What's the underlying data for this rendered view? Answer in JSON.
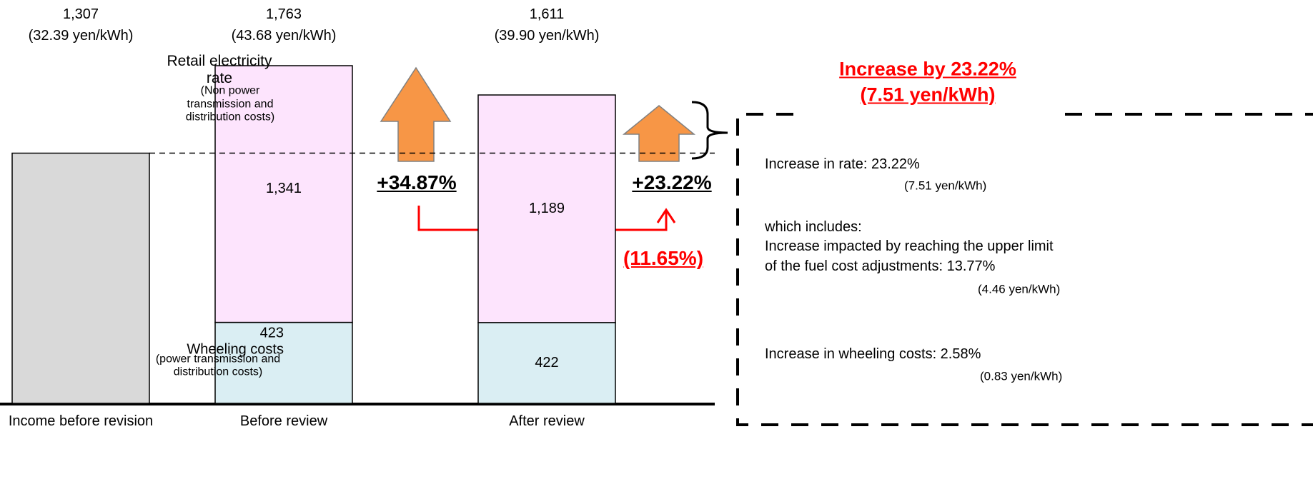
{
  "chart_data": {
    "type": "stacked-bar",
    "bars": [
      {
        "category": "Income before revision",
        "total_label": "1,307",
        "rate_label": "(32.39 yen/kWh)",
        "segments": [
          {
            "value": 1307,
            "color": "#d9d9d9"
          }
        ]
      },
      {
        "category": "Before review",
        "total_label": "1,763",
        "rate_label": "(43.68 yen/kWh)",
        "segments": [
          {
            "value": 423,
            "value_label": "423",
            "name": "Wheeling costs",
            "note": "(power transmission and distribution costs)",
            "color": "#daeef3"
          },
          {
            "value": 1341,
            "value_label": "1,341",
            "name": "Retail electricity rate",
            "note": "(Non power transmission and distribution costs)",
            "color": "#fde4fd"
          }
        ]
      },
      {
        "category": "After review",
        "total_label": "1,611",
        "rate_label": "(39.90 yen/kWh)",
        "segments": [
          {
            "value": 422,
            "value_label": "422",
            "color": "#daeef3"
          },
          {
            "value": 1189,
            "value_label": "1,189",
            "color": "#fde4fd"
          }
        ]
      }
    ],
    "changes": [
      "+34.87%",
      "+23.22%"
    ],
    "difference_label": "(11.65%)",
    "summary": {
      "title": "Increase by 23.22%",
      "subtitle": "(7.51 yen/kWh)",
      "lines": [
        "Increase in rate:   23.22%",
        "(7.51 yen/kWh)",
        "which includes:",
        "Increase impacted by reaching the upper limit",
        "of the fuel cost adjustments:  13.77%",
        "(4.46 yen/kWh)",
        "Increase in wheeling costs:   2.58%",
        "(0.83 yen/kWh)"
      ]
    }
  }
}
